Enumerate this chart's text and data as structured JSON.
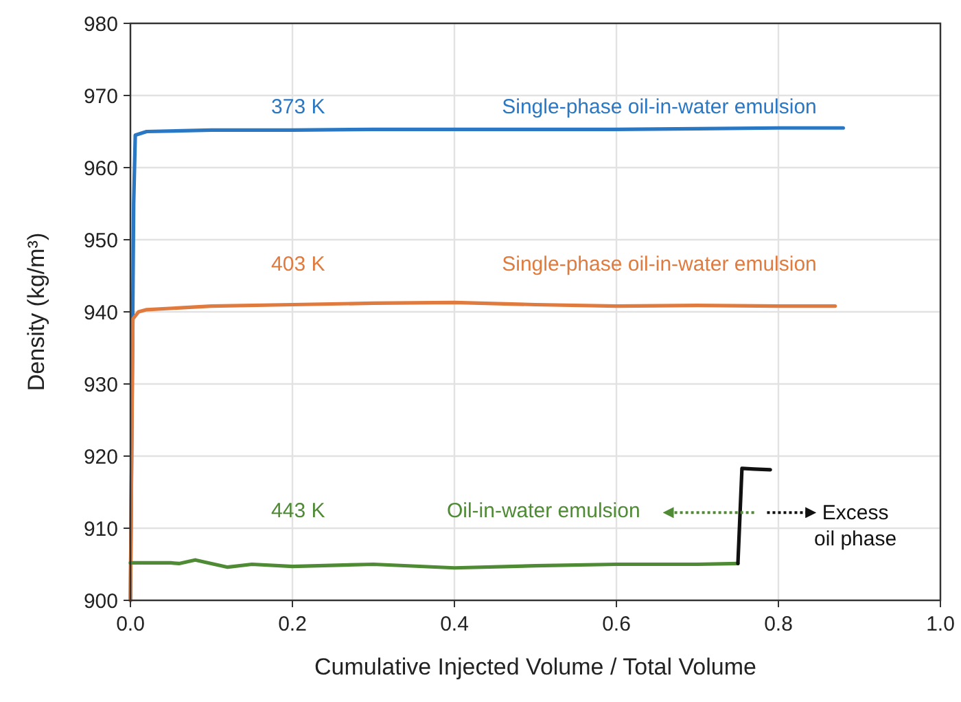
{
  "chart_data": {
    "type": "line",
    "xlabel": "Cumulative Injected Volume / Total Volume",
    "ylabel": "Density (kg/m³)",
    "xlim": [
      0,
      1
    ],
    "ylim": [
      900,
      980
    ],
    "xticks": [
      {
        "value": 0,
        "label": "0.0"
      },
      {
        "value": 0.2,
        "label": "0.2"
      },
      {
        "value": 0.4,
        "label": "0.4"
      },
      {
        "value": 0.6,
        "label": "0.6"
      },
      {
        "value": 0.8,
        "label": "0.8"
      },
      {
        "value": 1,
        "label": "1.0"
      }
    ],
    "yticks": [
      900,
      910,
      920,
      930,
      940,
      950,
      960,
      970,
      980
    ],
    "grid": true,
    "marker": "none",
    "line_style": "solid",
    "series": [
      {
        "name": "373 K",
        "color": "#2a77c4",
        "x": [
          0,
          0.004,
          0.006,
          0.02,
          0.1,
          0.2,
          0.3,
          0.4,
          0.5,
          0.6,
          0.7,
          0.8,
          0.88
        ],
        "values": [
          900,
          955,
          964.5,
          965,
          965.2,
          965.2,
          965.3,
          965.3,
          965.3,
          965.3,
          965.4,
          965.5,
          965.5
        ]
      },
      {
        "name": "403 K",
        "color": "#e07b3f",
        "x": [
          0,
          0.003,
          0.01,
          0.02,
          0.1,
          0.2,
          0.3,
          0.4,
          0.5,
          0.6,
          0.7,
          0.8,
          0.87
        ],
        "values": [
          900,
          939,
          940,
          940.3,
          940.8,
          941,
          941.2,
          941.3,
          941,
          940.8,
          940.9,
          940.8,
          940.8
        ]
      },
      {
        "name": "443 K",
        "color": "#4f8a35",
        "x": [
          0,
          0.05,
          0.06,
          0.08,
          0.12,
          0.15,
          0.2,
          0.3,
          0.4,
          0.5,
          0.6,
          0.7,
          0.75
        ],
        "values": [
          905.2,
          905.2,
          905.1,
          905.6,
          904.6,
          905,
          904.7,
          905,
          904.5,
          904.8,
          905,
          905,
          905.1
        ]
      },
      {
        "color": "#111111",
        "x": [
          0.75,
          0.755,
          0.77,
          0.79
        ],
        "values": [
          905.1,
          918.3,
          918.2,
          918.1
        ]
      }
    ],
    "annotations": [
      "Single-phase oil-in-water emulsion",
      "Single-phase oil-in-water emulsion",
      "Oil-in-water emulsion",
      "Excess\noil phase"
    ]
  }
}
